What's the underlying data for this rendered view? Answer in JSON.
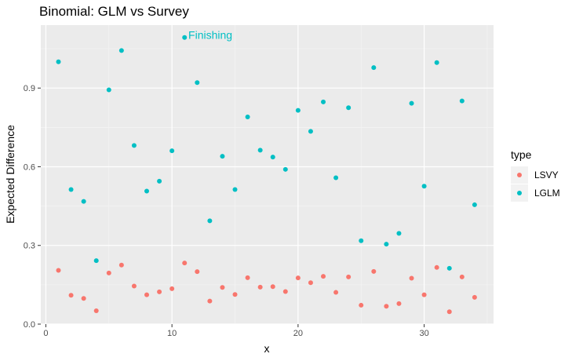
{
  "chart_data": {
    "type": "scatter",
    "title": "Binomial: GLM vs Survey",
    "xlabel": "x",
    "ylabel": "Expected Difference",
    "xlim": [
      -0.4,
      35.5
    ],
    "ylim": [
      0,
      1.14
    ],
    "x_ticks": [
      0,
      10,
      20,
      30
    ],
    "x_tick_labels": [
      "0",
      "10",
      "20",
      "30"
    ],
    "y_ticks": [
      0,
      0.3,
      0.6,
      0.9
    ],
    "y_tick_labels": [
      "0.0",
      "0.3",
      "0.6",
      "0.9"
    ],
    "grid": true,
    "legend": {
      "title": "type",
      "position": "right"
    },
    "series": [
      {
        "name": "LSVY",
        "color": "#F8766D",
        "points": [
          [
            1,
            0.205
          ],
          [
            2,
            0.11
          ],
          [
            3,
            0.098
          ],
          [
            4,
            0.051
          ],
          [
            5,
            0.195
          ],
          [
            6,
            0.225
          ],
          [
            7,
            0.145
          ],
          [
            8,
            0.112
          ],
          [
            9,
            0.123
          ],
          [
            10,
            0.135
          ],
          [
            11,
            0.233
          ],
          [
            12,
            0.2
          ],
          [
            13,
            0.088
          ],
          [
            14,
            0.14
          ],
          [
            15,
            0.113
          ],
          [
            16,
            0.177
          ],
          [
            17,
            0.141
          ],
          [
            18,
            0.143
          ],
          [
            19,
            0.124
          ],
          [
            20,
            0.176
          ],
          [
            21,
            0.158
          ],
          [
            22,
            0.182
          ],
          [
            23,
            0.121
          ],
          [
            24,
            0.18
          ],
          [
            25,
            0.072
          ],
          [
            26,
            0.201
          ],
          [
            27,
            0.068
          ],
          [
            28,
            0.078
          ],
          [
            29,
            0.175
          ],
          [
            30,
            0.112
          ],
          [
            31,
            0.216
          ],
          [
            32,
            0.047
          ],
          [
            33,
            0.18
          ],
          [
            34,
            0.102
          ]
        ]
      },
      {
        "name": "LGLM",
        "color": "#00BFC4",
        "points": [
          [
            1,
            1.0
          ],
          [
            2,
            0.513
          ],
          [
            3,
            0.468
          ],
          [
            4,
            0.242
          ],
          [
            5,
            0.893
          ],
          [
            6,
            1.043
          ],
          [
            7,
            0.681
          ],
          [
            8,
            0.507
          ],
          [
            9,
            0.545
          ],
          [
            10,
            0.661
          ],
          [
            11,
            1.093
          ],
          [
            12,
            0.921
          ],
          [
            13,
            0.394
          ],
          [
            14,
            0.64
          ],
          [
            15,
            0.513
          ],
          [
            16,
            0.79
          ],
          [
            17,
            0.663
          ],
          [
            18,
            0.637
          ],
          [
            19,
            0.59
          ],
          [
            20,
            0.815
          ],
          [
            21,
            0.735
          ],
          [
            22,
            0.847
          ],
          [
            23,
            0.558
          ],
          [
            24,
            0.825
          ],
          [
            25,
            0.318
          ],
          [
            26,
            0.978
          ],
          [
            27,
            0.305
          ],
          [
            28,
            0.346
          ],
          [
            29,
            0.842
          ],
          [
            30,
            0.526
          ],
          [
            31,
            0.997
          ],
          [
            32,
            0.213
          ],
          [
            33,
            0.851
          ],
          [
            34,
            0.455
          ]
        ]
      }
    ],
    "annotations": [
      {
        "text": "Finishing",
        "x": 11.3,
        "y": 1.103,
        "color": "#00BFC4"
      }
    ]
  }
}
